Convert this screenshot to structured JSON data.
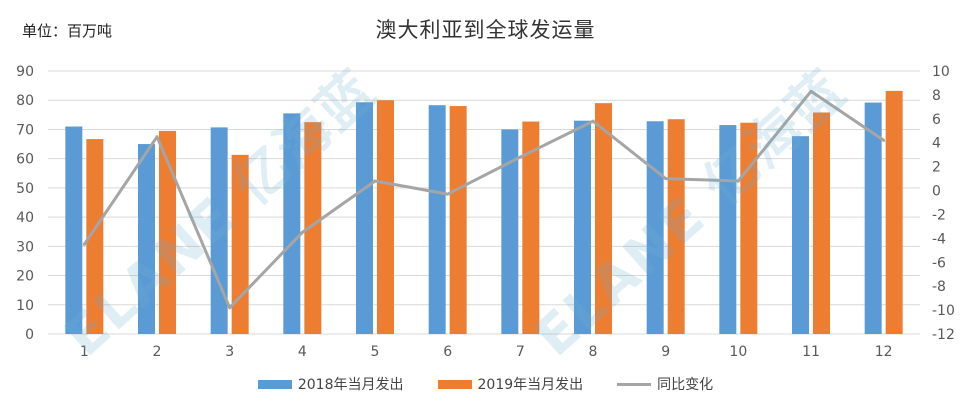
{
  "unit_label": "单位：百万吨",
  "watermark_text": "ELANE 亿海蓝",
  "colors": {
    "bar2018": "#5b9bd5",
    "bar2019": "#ed7d31",
    "yoy": "#a5a5a5",
    "grid": "#d9d9d9",
    "text": "#595959"
  },
  "chart_data": {
    "type": "bar",
    "title": "澳大利亚到全球发运量",
    "xlabel": "",
    "ylabel": "",
    "categories": [
      "1",
      "2",
      "3",
      "4",
      "5",
      "6",
      "7",
      "8",
      "9",
      "10",
      "11",
      "12"
    ],
    "ylim": [
      0,
      90
    ],
    "yticks": [
      0,
      10,
      20,
      30,
      40,
      50,
      60,
      70,
      80,
      90
    ],
    "y2lim": [
      -12,
      10
    ],
    "y2ticks": [
      -12,
      -10,
      -8,
      -6,
      -4,
      -2,
      0,
      2,
      4,
      6,
      8,
      10
    ],
    "legend_position": "bottom",
    "grid": true,
    "series": [
      {
        "name": "2018年当月发出",
        "type": "bar",
        "axis": "left",
        "values": [
          71.0,
          65.0,
          70.7,
          75.5,
          79.3,
          78.3,
          70.0,
          73.0,
          72.8,
          71.5,
          67.7,
          79.2
        ]
      },
      {
        "name": "2019年当月发出",
        "type": "bar",
        "axis": "left",
        "values": [
          66.7,
          69.5,
          61.3,
          72.5,
          80.0,
          78.0,
          72.7,
          79.0,
          73.5,
          72.3,
          75.8,
          83.2
        ]
      },
      {
        "name": "同比变化",
        "type": "line",
        "axis": "right",
        "values": [
          -4.5,
          4.5,
          -9.8,
          -3.5,
          0.8,
          -0.3,
          2.8,
          5.8,
          1.0,
          0.8,
          8.3,
          4.2
        ]
      }
    ]
  }
}
